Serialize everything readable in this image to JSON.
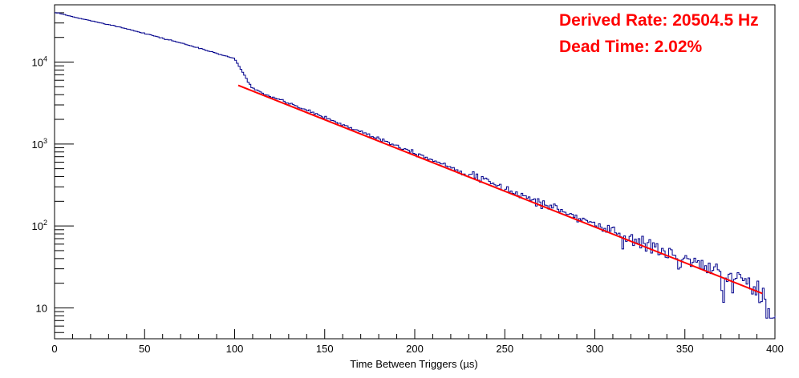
{
  "chart_data": {
    "type": "histogram",
    "title": "",
    "xlabel": "Time Between Triggers (µs)",
    "ylabel": "",
    "xlim": [
      0,
      400
    ],
    "ylim": [
      4.2,
      50000
    ],
    "y_scale": "log",
    "grid": false,
    "x_ticks": [
      0,
      50,
      100,
      150,
      200,
      250,
      300,
      350,
      400
    ],
    "y_ticks": [
      {
        "value": 10,
        "label": "10"
      },
      {
        "value": 100,
        "label": "10",
        "exp": "2"
      },
      {
        "value": 1000,
        "label": "10",
        "exp": "3"
      },
      {
        "value": 10000,
        "label": "10",
        "exp": "4"
      }
    ],
    "series": [
      {
        "color": "#00008b",
        "style": "step",
        "bin_width": 1,
        "x": [
          0,
          2,
          4,
          6,
          8,
          10,
          20,
          30,
          40,
          50,
          60,
          70,
          80,
          90,
          100,
          110,
          120,
          130,
          140,
          150,
          160,
          170,
          180,
          190,
          200,
          210,
          220,
          230,
          240,
          250,
          260,
          270,
          280,
          290,
          300,
          310,
          320,
          330,
          340,
          350,
          360,
          370,
          380,
          390,
          400
        ],
        "values": [
          40000,
          39500,
          38700,
          37700,
          36500,
          35700,
          32000,
          28800,
          25500,
          22500,
          19500,
          17200,
          14800,
          12800,
          11000,
          4700,
          3800,
          3150,
          2580,
          2120,
          1720,
          1420,
          1170,
          960,
          790,
          640,
          525,
          430,
          350,
          285,
          235,
          192,
          158,
          128,
          105,
          86,
          70,
          57,
          47,
          38,
          31,
          25,
          21,
          17,
          8
        ]
      },
      {
        "color": "#ff0000",
        "style": "fit",
        "x": [
          102,
          393
        ],
        "values": [
          5200,
          15
        ]
      }
    ],
    "annotations": [
      "Derived Rate: 20504.5 Hz",
      "Dead Time: 2.02%"
    ]
  }
}
